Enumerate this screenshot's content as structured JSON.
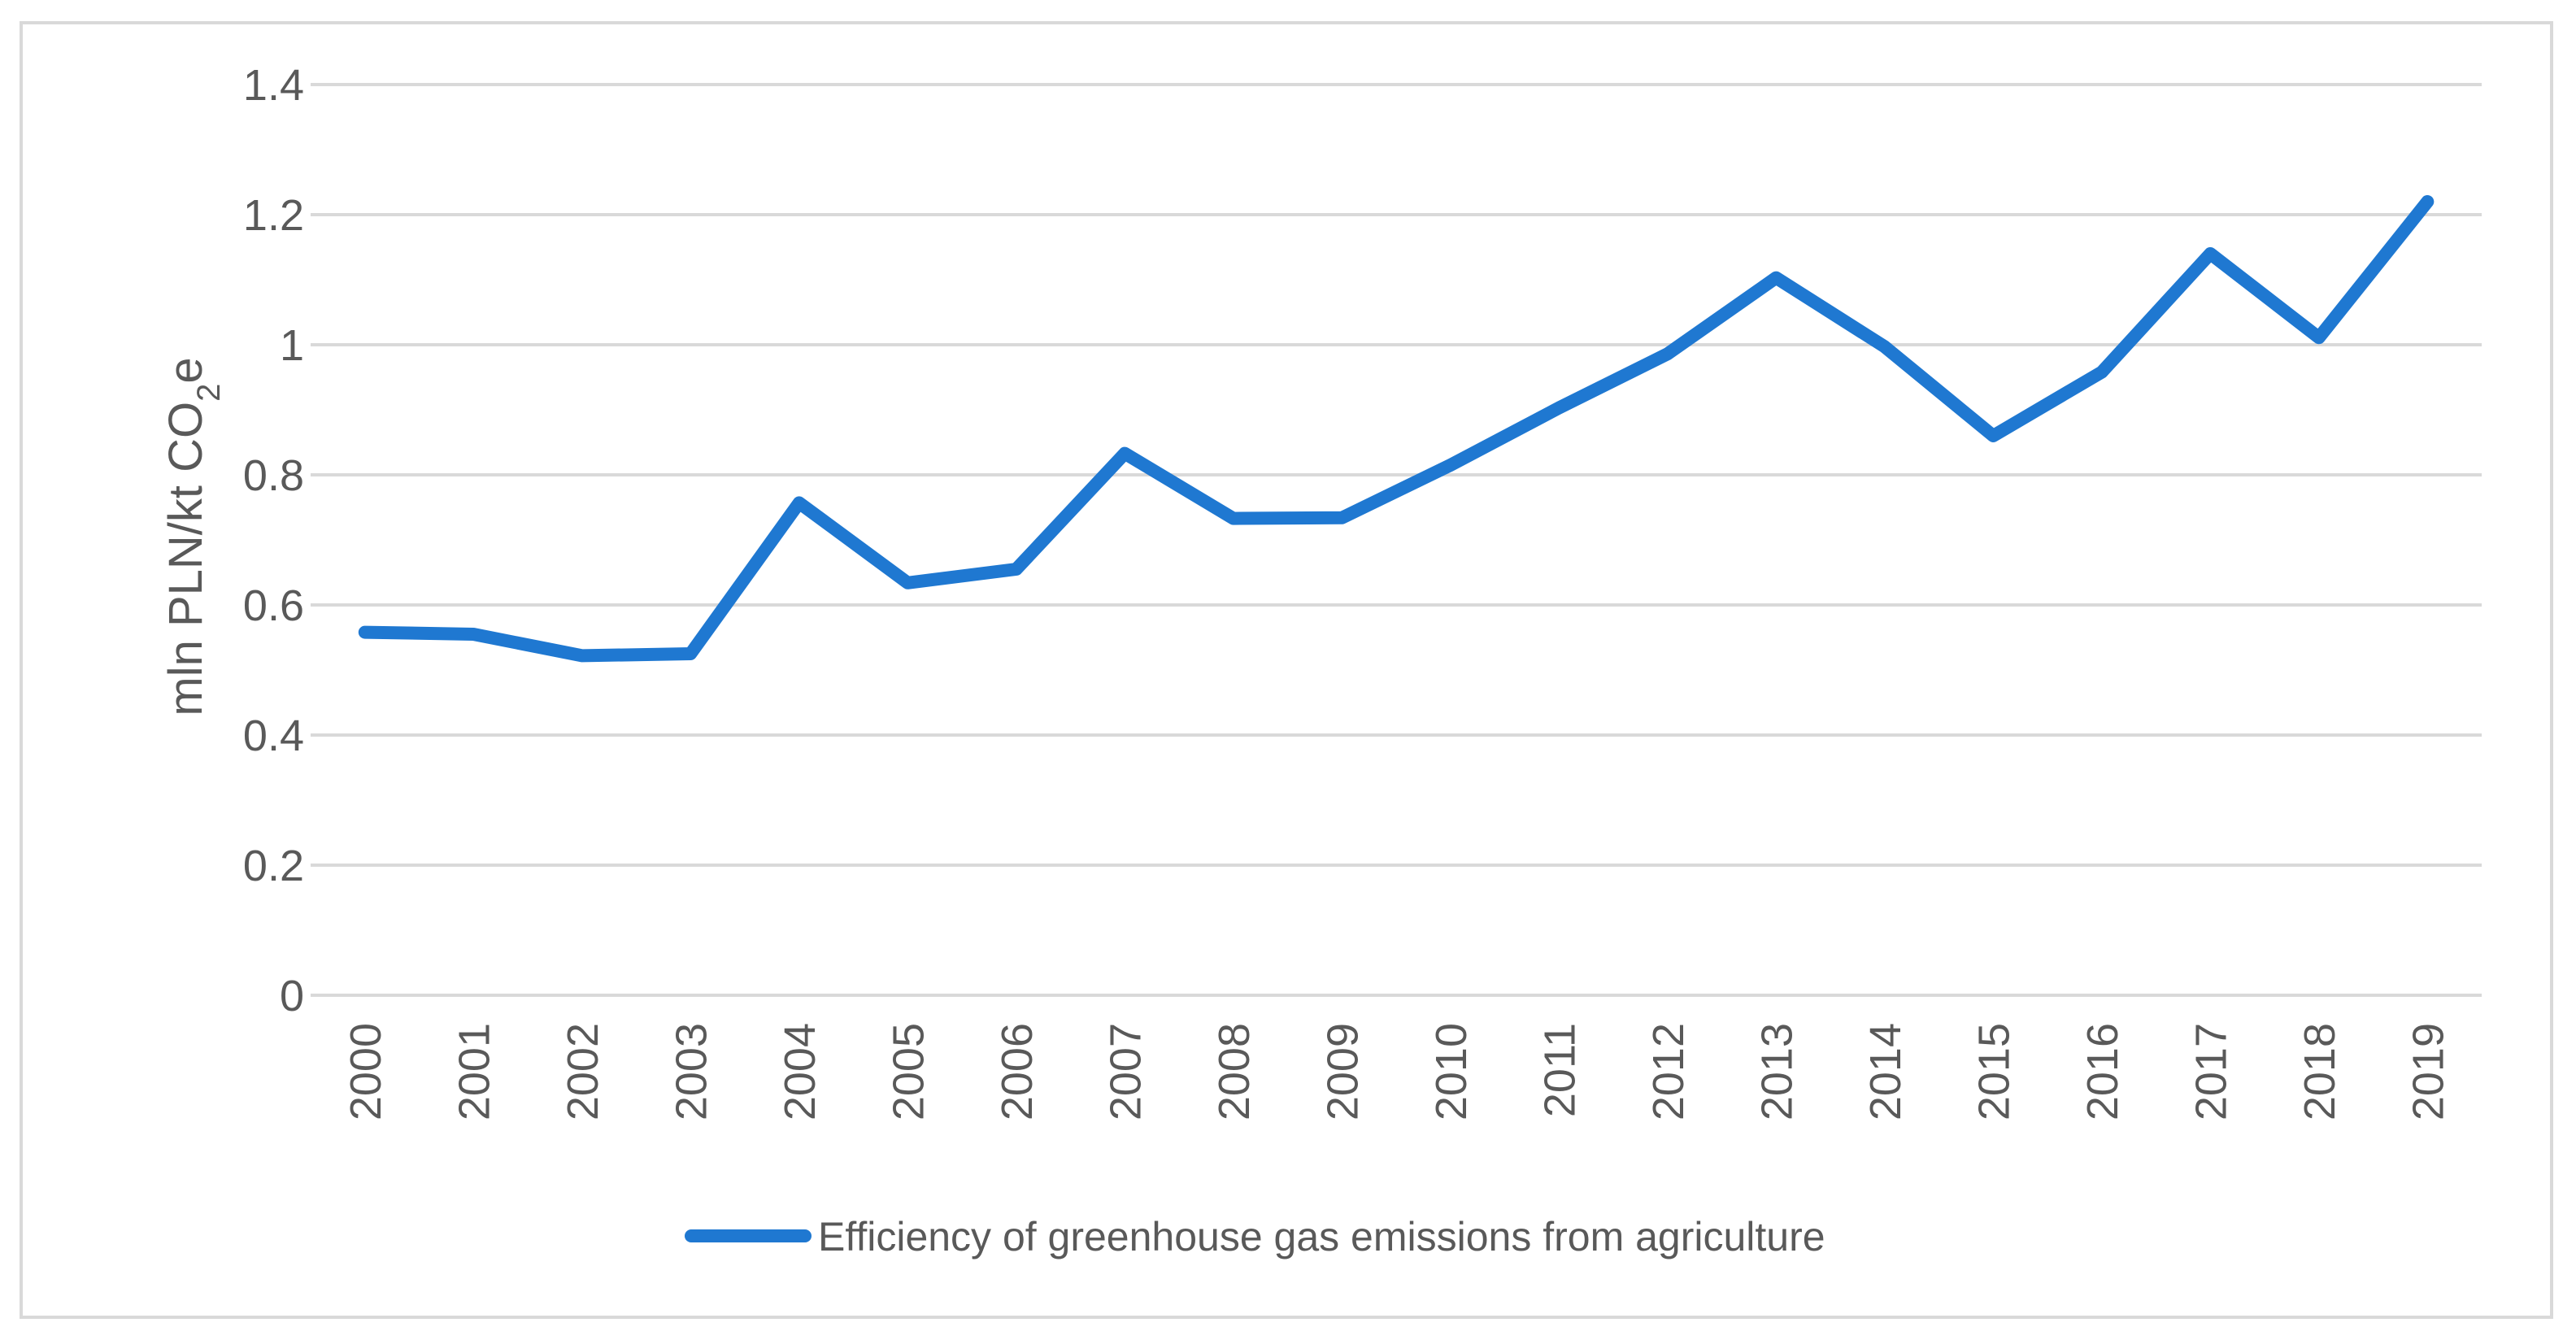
{
  "chart_data": {
    "type": "line",
    "title": "",
    "xlabel": "",
    "ylabel": "mln PLN/kt CO2e",
    "ylabel_main": "mln PLN/kt CO",
    "ylabel_subscript": "2",
    "ylabel_suffix": "e",
    "ylim": [
      0,
      1.4
    ],
    "yticks": [
      "0",
      "0.2",
      "0.4",
      "0.6",
      "0.8",
      "1",
      "1.2",
      "1.4"
    ],
    "ytick_values": [
      0,
      0.2,
      0.4,
      0.6,
      0.8,
      1.0,
      1.2,
      1.4
    ],
    "categories": [
      "2000",
      "2001",
      "2002",
      "2003",
      "2004",
      "2005",
      "2006",
      "2007",
      "2008",
      "2009",
      "2010",
      "2011",
      "2012",
      "2013",
      "2014",
      "2015",
      "2016",
      "2017",
      "2018",
      "2019"
    ],
    "series": [
      {
        "name": "Efficiency of greenhouse gas emissions from agriculture",
        "color": "#1f78d1",
        "values": [
          0.558,
          0.555,
          0.522,
          0.525,
          0.757,
          0.634,
          0.655,
          0.833,
          0.733,
          0.734,
          0.815,
          0.903,
          0.986,
          1.103,
          0.997,
          0.86,
          0.958,
          1.14,
          1.011,
          1.22
        ]
      }
    ],
    "grid": true,
    "legend": "bottom"
  }
}
